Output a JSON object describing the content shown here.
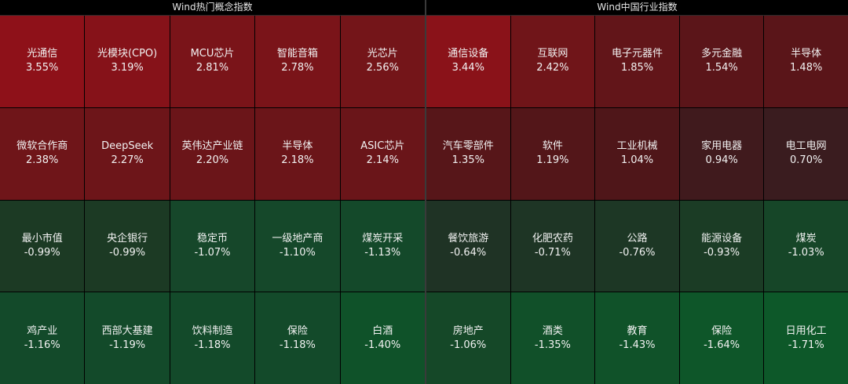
{
  "panels": [
    {
      "title": "Wind热门概念指数",
      "cells": [
        {
          "name": "光通信",
          "pct": "3.55%",
          "color": "#8e1119"
        },
        {
          "name": "光模块(CPO)",
          "pct": "3.19%",
          "color": "#861219"
        },
        {
          "name": "MCU芯片",
          "pct": "2.81%",
          "color": "#7a1419"
        },
        {
          "name": "智能音箱",
          "pct": "2.78%",
          "color": "#7a1419"
        },
        {
          "name": "光芯片",
          "pct": "2.56%",
          "color": "#741519"
        },
        {
          "name": "微软合作商",
          "pct": "2.38%",
          "color": "#6f1519"
        },
        {
          "name": "DeepSeek",
          "pct": "2.27%",
          "color": "#6d1519"
        },
        {
          "name": "英伟达产业链",
          "pct": "2.20%",
          "color": "#6b1519"
        },
        {
          "name": "半导体",
          "pct": "2.18%",
          "color": "#6b1519"
        },
        {
          "name": "ASIC芯片",
          "pct": "2.14%",
          "color": "#6a1519"
        },
        {
          "name": "最小市值",
          "pct": "-0.99%",
          "color": "#1c3a24"
        },
        {
          "name": "央企银行",
          "pct": "-0.99%",
          "color": "#1c3a24"
        },
        {
          "name": "稳定币",
          "pct": "-1.07%",
          "color": "#16472a"
        },
        {
          "name": "一级地产商",
          "pct": "-1.10%",
          "color": "#15482a"
        },
        {
          "name": "煤炭开采",
          "pct": "-1.13%",
          "color": "#14492a"
        },
        {
          "name": "鸡产业",
          "pct": "-1.16%",
          "color": "#134a2a"
        },
        {
          "name": "西部大基建",
          "pct": "-1.19%",
          "color": "#134a2a"
        },
        {
          "name": "饮料制造",
          "pct": "-1.18%",
          "color": "#134a2a"
        },
        {
          "name": "保险",
          "pct": "-1.18%",
          "color": "#134a2a"
        },
        {
          "name": "白酒",
          "pct": "-1.40%",
          "color": "#0f5229"
        }
      ]
    },
    {
      "title": "Wind中国行业指数",
      "cells": [
        {
          "name": "通信设备",
          "pct": "3.44%",
          "color": "#8a1219"
        },
        {
          "name": "互联网",
          "pct": "2.42%",
          "color": "#701519"
        },
        {
          "name": "电子元器件",
          "pct": "1.85%",
          "color": "#621519"
        },
        {
          "name": "多元金融",
          "pct": "1.54%",
          "color": "#5b1519"
        },
        {
          "name": "半导体",
          "pct": "1.48%",
          "color": "#5a1519"
        },
        {
          "name": "汽车零部件",
          "pct": "1.35%",
          "color": "#571619"
        },
        {
          "name": "软件",
          "pct": "1.19%",
          "color": "#531619"
        },
        {
          "name": "工业机械",
          "pct": "1.04%",
          "color": "#4f1619"
        },
        {
          "name": "家用电器",
          "pct": "0.94%",
          "color": "#401a1d"
        },
        {
          "name": "电工电网",
          "pct": "0.70%",
          "color": "#3a1c1f"
        },
        {
          "name": "餐饮旅游",
          "pct": "-0.64%",
          "color": "#1f3325"
        },
        {
          "name": "化肥农药",
          "pct": "-0.71%",
          "color": "#1e3525"
        },
        {
          "name": "公路",
          "pct": "-0.76%",
          "color": "#1d3725"
        },
        {
          "name": "能源设备",
          "pct": "-0.93%",
          "color": "#1b3c25"
        },
        {
          "name": "煤炭",
          "pct": "-1.03%",
          "color": "#164628"
        },
        {
          "name": "房地产",
          "pct": "-1.06%",
          "color": "#154828"
        },
        {
          "name": "酒类",
          "pct": "-1.35%",
          "color": "#115029"
        },
        {
          "name": "教育",
          "pct": "-1.43%",
          "color": "#105229"
        },
        {
          "name": "保险",
          "pct": "-1.64%",
          "color": "#0e5629"
        },
        {
          "name": "日用化工",
          "pct": "-1.71%",
          "color": "#0d5829"
        }
      ]
    }
  ]
}
